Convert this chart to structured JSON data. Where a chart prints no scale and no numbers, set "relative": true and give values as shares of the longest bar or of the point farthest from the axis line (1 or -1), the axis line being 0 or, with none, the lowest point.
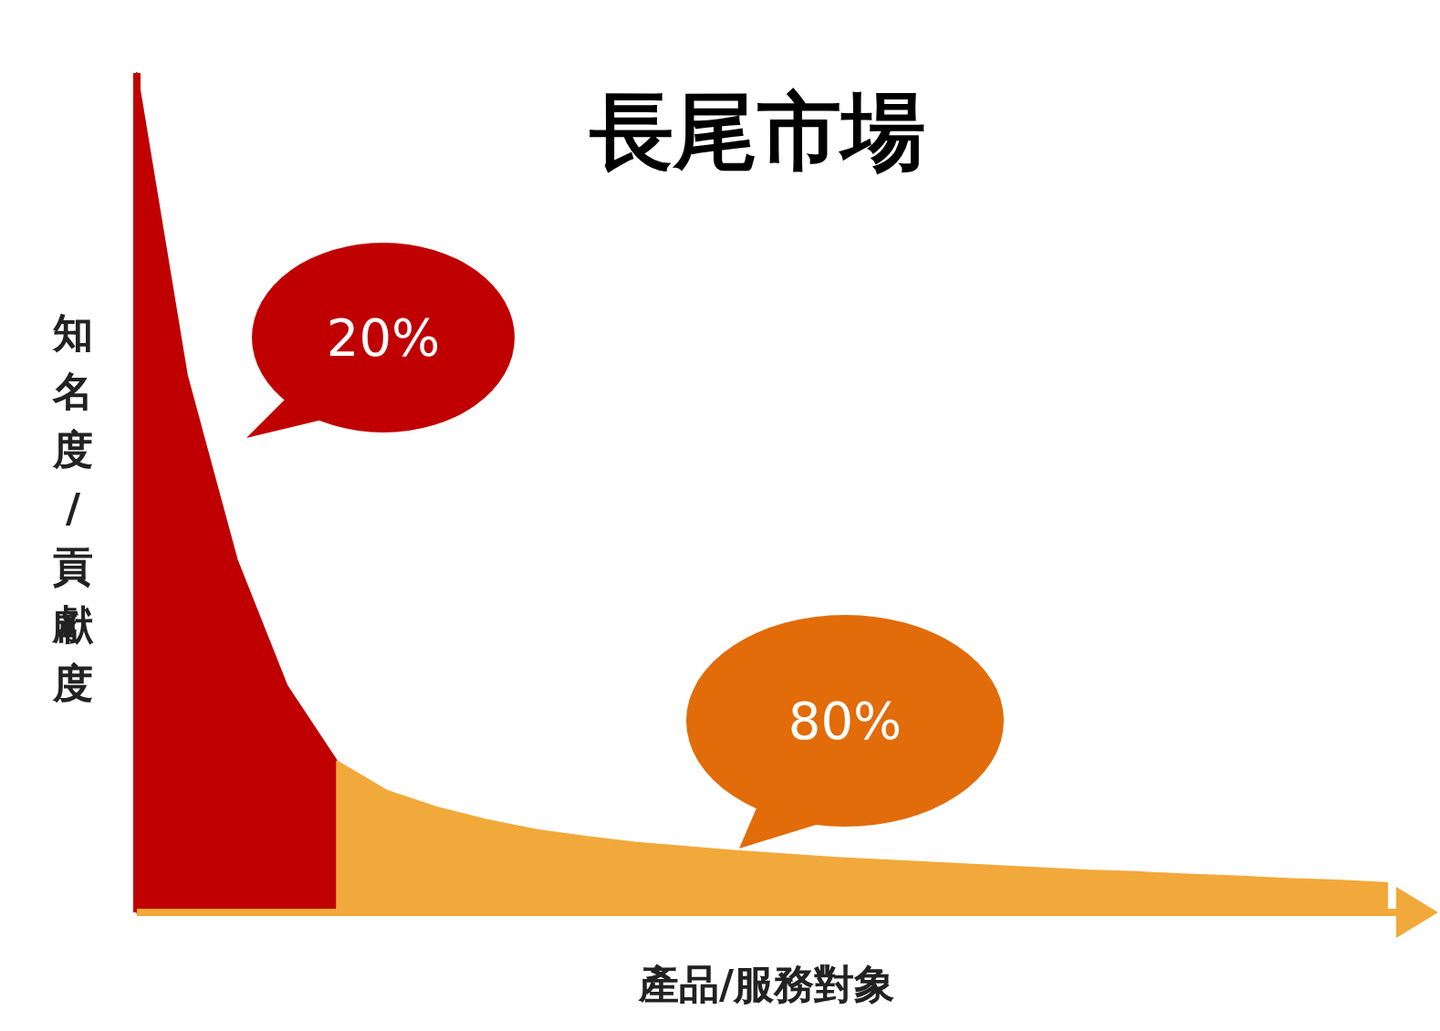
{
  "chart_data": {
    "type": "area",
    "relative": true,
    "title": "長尾市場",
    "xlabel": "產品/服務對象",
    "ylabel": "知名度/貢獻度",
    "categories": [
      null,
      null,
      null,
      null,
      null,
      null,
      null,
      null,
      null,
      null,
      null,
      null,
      null,
      null,
      null,
      null,
      null,
      null,
      null,
      null,
      null,
      null,
      null,
      null,
      null,
      null
    ],
    "series": [
      {
        "color": "#c00000",
        "values": [
          1.0,
          0.64,
          0.42,
          0.27,
          0.18,
          null,
          null,
          null,
          null,
          null,
          null,
          null,
          null,
          null,
          null,
          null,
          null,
          null,
          null,
          null,
          null,
          null,
          null,
          null,
          null,
          null
        ]
      },
      {
        "color": "#f2a93b",
        "values": [
          null,
          null,
          null,
          null,
          0.18,
          0.145,
          0.125,
          0.11,
          0.098,
          0.09,
          0.083,
          0.078,
          0.073,
          0.069,
          0.065,
          0.062,
          0.059,
          0.056,
          0.053,
          0.05,
          0.048,
          0.045,
          0.043,
          0.04,
          0.038,
          0.035
        ]
      }
    ],
    "annotations": [
      "20%",
      "80%"
    ]
  }
}
